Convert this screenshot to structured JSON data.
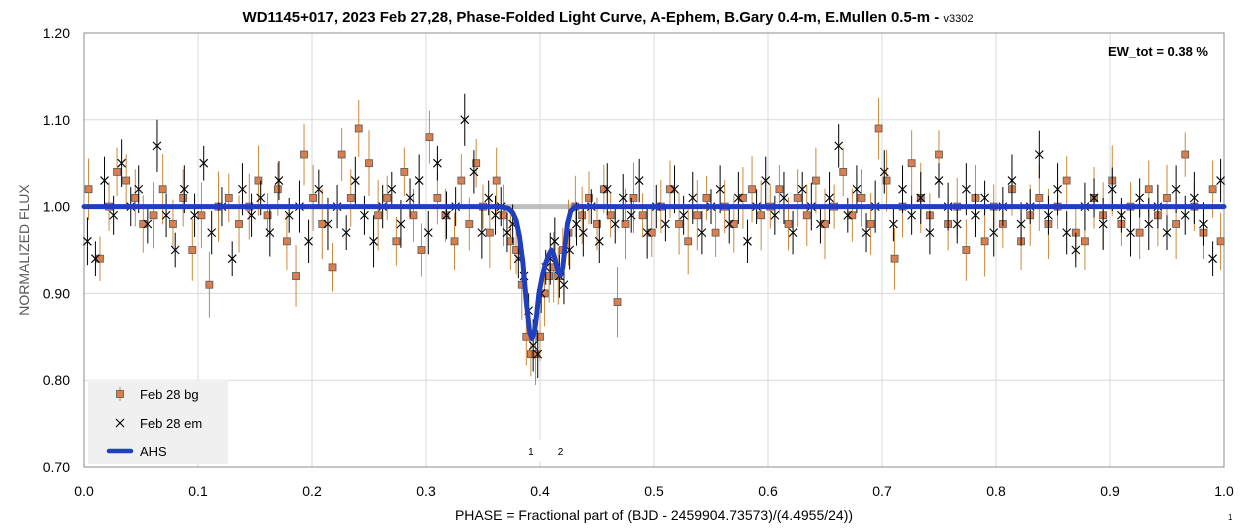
{
  "chart_data": {
    "type": "scatter",
    "title": "WD1145+017, 2023 Feb 27,28, Phase-Folded Light Curve, A-Ephem, B.Gary 0.4-m, E.Mullen 0.5-m - ",
    "title_version": "v3302",
    "xlabel": "PHASE = Fractional part of (BJD - 2459904.73573)/(4.4955/24))",
    "ylabel": "NORMALIZED FLUX",
    "xlim": [
      0.0,
      1.0
    ],
    "ylim": [
      0.7,
      1.2
    ],
    "x_ticks": [
      "0.0",
      "0.1",
      "0.2",
      "0.3",
      "0.4",
      "0.5",
      "0.6",
      "0.7",
      "0.8",
      "0.9",
      "1.0"
    ],
    "y_ticks": [
      "0.70",
      "0.80",
      "0.90",
      "1.00",
      "1.10",
      "1.20"
    ],
    "grid": true,
    "legend_position": "bottom-left",
    "annotation": "EW_tot = 0.38 %",
    "event_labels": [
      {
        "text": "1",
        "x": 0.392
      },
      {
        "text": "2",
        "x": 0.418
      }
    ],
    "page_number": "1",
    "reference_line": {
      "y": 1.0,
      "x_range": [
        0.345,
        0.44
      ],
      "color": "#bfbfbf"
    },
    "colors": {
      "bg_marker": "#d97e4c",
      "bg_marker_edge": "#595959",
      "bg_errorbar": "#c98a3c",
      "em_marker": "#000000",
      "em_errorbar": "#000000",
      "model": "#1f3fbf",
      "legend_bg": "#f0f0f0",
      "grid": "#d9d9d9"
    },
    "series": [
      {
        "name": "Feb 28 bg",
        "marker": "square",
        "typical_error": 0.03,
        "points": [
          [
            0.004,
            1.02
          ],
          [
            0.014,
            0.94
          ],
          [
            0.022,
            1.0
          ],
          [
            0.029,
            1.04
          ],
          [
            0.037,
            1.03
          ],
          [
            0.045,
            1.01
          ],
          [
            0.052,
            0.98
          ],
          [
            0.061,
            0.99
          ],
          [
            0.069,
            1.02
          ],
          [
            0.078,
            0.98
          ],
          [
            0.087,
            1.01
          ],
          [
            0.095,
            0.95
          ],
          [
            0.103,
            0.99
          ],
          [
            0.11,
            0.91
          ],
          [
            0.118,
            1.0
          ],
          [
            0.127,
            1.01
          ],
          [
            0.136,
            0.98
          ],
          [
            0.145,
            1.0
          ],
          [
            0.153,
            1.03
          ],
          [
            0.161,
            0.99
          ],
          [
            0.17,
            1.02
          ],
          [
            0.178,
            0.96
          ],
          [
            0.186,
            0.92
          ],
          [
            0.193,
            1.06
          ],
          [
            0.201,
            1.01
          ],
          [
            0.209,
            0.98
          ],
          [
            0.218,
            0.93
          ],
          [
            0.226,
            1.06
          ],
          [
            0.234,
            1.01
          ],
          [
            0.241,
            1.09
          ],
          [
            0.25,
            1.05
          ],
          [
            0.258,
            0.99
          ],
          [
            0.266,
            1.01
          ],
          [
            0.274,
            0.96
          ],
          [
            0.281,
            1.04
          ],
          [
            0.289,
            0.99
          ],
          [
            0.296,
            0.95
          ],
          [
            0.303,
            1.08
          ],
          [
            0.31,
            1.01
          ],
          [
            0.317,
            0.99
          ],
          [
            0.325,
            0.96
          ],
          [
            0.331,
            1.03
          ],
          [
            0.338,
            0.98
          ],
          [
            0.344,
            1.05
          ],
          [
            0.35,
            1.0
          ],
          [
            0.356,
            0.97
          ],
          [
            0.362,
            1.03
          ],
          [
            0.368,
            0.99
          ],
          [
            0.374,
            0.96
          ],
          [
            0.379,
            0.95
          ],
          [
            0.384,
            0.91
          ],
          [
            0.388,
            0.85
          ],
          [
            0.392,
            0.83
          ],
          [
            0.396,
            0.83
          ],
          [
            0.4,
            0.85
          ],
          [
            0.404,
            0.9
          ],
          [
            0.408,
            0.92
          ],
          [
            0.412,
            0.93
          ],
          [
            0.416,
            0.92
          ],
          [
            0.42,
            0.95
          ],
          [
            0.425,
            0.97
          ],
          [
            0.431,
            1.0
          ],
          [
            0.437,
            0.99
          ],
          [
            0.443,
            1.01
          ],
          [
            0.45,
            0.98
          ],
          [
            0.456,
            1.02
          ],
          [
            0.462,
            0.99
          ],
          [
            0.468,
            0.89
          ],
          [
            0.475,
            0.98
          ],
          [
            0.482,
            1.01
          ],
          [
            0.49,
            0.99
          ],
          [
            0.498,
            0.97
          ],
          [
            0.506,
            1.0
          ],
          [
            0.514,
            1.02
          ],
          [
            0.522,
            0.98
          ],
          [
            0.53,
            0.96
          ],
          [
            0.538,
            0.99
          ],
          [
            0.546,
            1.01
          ],
          [
            0.554,
            0.97
          ],
          [
            0.562,
            1.0
          ],
          [
            0.57,
            0.98
          ],
          [
            0.578,
            1.01
          ],
          [
            0.586,
            1.02
          ],
          [
            0.594,
            0.99
          ],
          [
            0.602,
            1.0
          ],
          [
            0.61,
            1.02
          ],
          [
            0.618,
            0.98
          ],
          [
            0.626,
            1.01
          ],
          [
            0.634,
            0.99
          ],
          [
            0.642,
            1.03
          ],
          [
            0.65,
            0.98
          ],
          [
            0.658,
            1.0
          ],
          [
            0.666,
            1.04
          ],
          [
            0.674,
            0.99
          ],
          [
            0.682,
            1.01
          ],
          [
            0.69,
            0.98
          ],
          [
            0.697,
            1.09
          ],
          [
            0.704,
            1.03
          ],
          [
            0.711,
            0.94
          ],
          [
            0.718,
            1.0
          ],
          [
            0.726,
            1.05
          ],
          [
            0.734,
            1.01
          ],
          [
            0.742,
            0.99
          ],
          [
            0.75,
            1.06
          ],
          [
            0.758,
            0.98
          ],
          [
            0.766,
            1.0
          ],
          [
            0.774,
            0.95
          ],
          [
            0.782,
            1.01
          ],
          [
            0.79,
            0.96
          ],
          [
            0.798,
            1.0
          ],
          [
            0.806,
            0.98
          ],
          [
            0.814,
            1.02
          ],
          [
            0.822,
            0.96
          ],
          [
            0.83,
            0.99
          ],
          [
            0.838,
            1.01
          ],
          [
            0.846,
            0.98
          ],
          [
            0.854,
            1.0
          ],
          [
            0.862,
            1.03
          ],
          [
            0.87,
            0.97
          ],
          [
            0.878,
            0.96
          ],
          [
            0.886,
            1.01
          ],
          [
            0.894,
            0.99
          ],
          [
            0.902,
            1.03
          ],
          [
            0.91,
            0.98
          ],
          [
            0.918,
            1.0
          ],
          [
            0.926,
            0.97
          ],
          [
            0.934,
            1.02
          ],
          [
            0.942,
            0.99
          ],
          [
            0.95,
            1.01
          ],
          [
            0.958,
            0.98
          ],
          [
            0.966,
            1.06
          ],
          [
            0.974,
            1.0
          ],
          [
            0.982,
            0.97
          ],
          [
            0.99,
            1.02
          ],
          [
            0.997,
            0.96
          ]
        ]
      },
      {
        "name": "Feb 28 em",
        "marker": "x",
        "typical_error": 0.025,
        "points": [
          [
            0.003,
            0.96
          ],
          [
            0.01,
            0.94
          ],
          [
            0.018,
            1.03
          ],
          [
            0.026,
            0.99
          ],
          [
            0.033,
            1.05
          ],
          [
            0.041,
            1.0
          ],
          [
            0.048,
            1.02
          ],
          [
            0.056,
            0.98
          ],
          [
            0.064,
            1.07
          ],
          [
            0.072,
            0.99
          ],
          [
            0.08,
            0.95
          ],
          [
            0.088,
            1.02
          ],
          [
            0.097,
            0.99
          ],
          [
            0.105,
            1.05
          ],
          [
            0.112,
            0.97
          ],
          [
            0.121,
            1.0
          ],
          [
            0.13,
            0.94
          ],
          [
            0.139,
            1.02
          ],
          [
            0.147,
            0.99
          ],
          [
            0.155,
            1.01
          ],
          [
            0.163,
            0.97
          ],
          [
            0.171,
            1.03
          ],
          [
            0.18,
            0.99
          ],
          [
            0.189,
            1.0
          ],
          [
            0.197,
            0.96
          ],
          [
            0.206,
            1.02
          ],
          [
            0.214,
            0.98
          ],
          [
            0.222,
            1.0
          ],
          [
            0.23,
            0.97
          ],
          [
            0.238,
            1.03
          ],
          [
            0.246,
            0.99
          ],
          [
            0.254,
            0.96
          ],
          [
            0.262,
            1.0
          ],
          [
            0.27,
            1.02
          ],
          [
            0.278,
            0.98
          ],
          [
            0.286,
            1.01
          ],
          [
            0.294,
            1.03
          ],
          [
            0.302,
            0.97
          ],
          [
            0.31,
            1.05
          ],
          [
            0.318,
            0.99
          ],
          [
            0.326,
            1.0
          ],
          [
            0.334,
            1.1
          ],
          [
            0.342,
            1.04
          ],
          [
            0.349,
            0.97
          ],
          [
            0.355,
            1.01
          ],
          [
            0.361,
            0.99
          ],
          [
            0.366,
            1.0
          ],
          [
            0.371,
            0.97
          ],
          [
            0.376,
            0.98
          ],
          [
            0.381,
            0.94
          ],
          [
            0.386,
            0.92
          ],
          [
            0.39,
            0.88
          ],
          [
            0.394,
            0.84
          ],
          [
            0.398,
            0.83
          ],
          [
            0.401,
            0.9
          ],
          [
            0.405,
            0.93
          ],
          [
            0.409,
            0.94
          ],
          [
            0.413,
            0.96
          ],
          [
            0.417,
            0.92
          ],
          [
            0.421,
            0.91
          ],
          [
            0.426,
            0.95
          ],
          [
            0.432,
            0.98
          ],
          [
            0.438,
            0.97
          ],
          [
            0.445,
            1.0
          ],
          [
            0.452,
            0.96
          ],
          [
            0.459,
            1.02
          ],
          [
            0.466,
            0.98
          ],
          [
            0.473,
            1.01
          ],
          [
            0.48,
            0.99
          ],
          [
            0.487,
            1.03
          ],
          [
            0.494,
            0.97
          ],
          [
            0.502,
            1.0
          ],
          [
            0.51,
            0.98
          ],
          [
            0.518,
            1.02
          ],
          [
            0.526,
            0.99
          ],
          [
            0.534,
            1.01
          ],
          [
            0.542,
            0.97
          ],
          [
            0.55,
            1.0
          ],
          [
            0.558,
            1.02
          ],
          [
            0.566,
            0.98
          ],
          [
            0.574,
            1.01
          ],
          [
            0.582,
            0.96
          ],
          [
            0.59,
            1.0
          ],
          [
            0.598,
            1.03
          ],
          [
            0.606,
            0.99
          ],
          [
            0.614,
            1.01
          ],
          [
            0.622,
            0.97
          ],
          [
            0.63,
            1.02
          ],
          [
            0.638,
            1.0
          ],
          [
            0.646,
            0.98
          ],
          [
            0.654,
            1.01
          ],
          [
            0.662,
            1.07
          ],
          [
            0.67,
            0.99
          ],
          [
            0.678,
            1.02
          ],
          [
            0.686,
            0.97
          ],
          [
            0.694,
            1.0
          ],
          [
            0.702,
            1.04
          ],
          [
            0.71,
            0.98
          ],
          [
            0.718,
            1.02
          ],
          [
            0.726,
            0.99
          ],
          [
            0.734,
            1.01
          ],
          [
            0.742,
            0.97
          ],
          [
            0.75,
            1.03
          ],
          [
            0.758,
            1.0
          ],
          [
            0.766,
            0.98
          ],
          [
            0.774,
            1.02
          ],
          [
            0.782,
            0.99
          ],
          [
            0.79,
            1.01
          ],
          [
            0.798,
            0.97
          ],
          [
            0.806,
            1.0
          ],
          [
            0.814,
            1.03
          ],
          [
            0.822,
            0.98
          ],
          [
            0.83,
            1.0
          ],
          [
            0.838,
            1.06
          ],
          [
            0.846,
            0.99
          ],
          [
            0.854,
            1.02
          ],
          [
            0.862,
            0.97
          ],
          [
            0.87,
            0.95
          ],
          [
            0.878,
            1.0
          ],
          [
            0.886,
            1.01
          ],
          [
            0.894,
            0.98
          ],
          [
            0.902,
            1.02
          ],
          [
            0.91,
            0.99
          ],
          [
            0.918,
            0.97
          ],
          [
            0.926,
            1.01
          ],
          [
            0.934,
            0.98
          ],
          [
            0.942,
            1.0
          ],
          [
            0.95,
            0.97
          ],
          [
            0.958,
            1.02
          ],
          [
            0.966,
            0.99
          ],
          [
            0.974,
            1.01
          ],
          [
            0.982,
            0.98
          ],
          [
            0.99,
            0.94
          ],
          [
            0.997,
            1.03
          ]
        ]
      },
      {
        "name": "AHS",
        "type": "line",
        "points": [
          [
            0.0,
            1.0
          ],
          [
            0.365,
            1.0
          ],
          [
            0.372,
            0.998
          ],
          [
            0.376,
            0.993
          ],
          [
            0.379,
            0.984
          ],
          [
            0.382,
            0.965
          ],
          [
            0.385,
            0.935
          ],
          [
            0.388,
            0.89
          ],
          [
            0.391,
            0.855
          ],
          [
            0.393,
            0.848
          ],
          [
            0.395,
            0.855
          ],
          [
            0.397,
            0.875
          ],
          [
            0.399,
            0.9
          ],
          [
            0.402,
            0.92
          ],
          [
            0.405,
            0.935
          ],
          [
            0.408,
            0.945
          ],
          [
            0.41,
            0.95
          ],
          [
            0.412,
            0.945
          ],
          [
            0.414,
            0.935
          ],
          [
            0.416,
            0.925
          ],
          [
            0.418,
            0.921
          ],
          [
            0.42,
            0.93
          ],
          [
            0.422,
            0.955
          ],
          [
            0.424,
            0.98
          ],
          [
            0.427,
            0.995
          ],
          [
            0.431,
            1.0
          ],
          [
            1.0,
            1.0
          ]
        ]
      }
    ]
  }
}
